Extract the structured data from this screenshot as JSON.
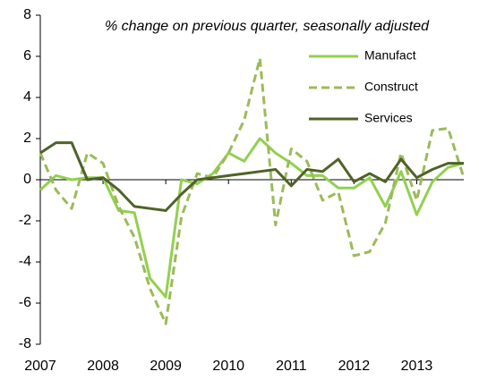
{
  "chart_data": {
    "type": "line",
    "title": "% change on previous quarter, seasonally adjusted",
    "x": [
      2007,
      2007.25,
      2007.5,
      2007.75,
      2008,
      2008.25,
      2008.5,
      2008.75,
      2009,
      2009.25,
      2009.5,
      2009.75,
      2010,
      2010.25,
      2010.5,
      2010.75,
      2011,
      2011.25,
      2011.5,
      2011.75,
      2012,
      2012.25,
      2012.5,
      2012.75,
      2013,
      2013.25,
      2013.5,
      2013.75
    ],
    "series": [
      {
        "name": "Manufact",
        "color": "#92d050",
        "dash": false,
        "values": [
          -0.5,
          0.2,
          0.0,
          0.1,
          0.1,
          -1.5,
          -1.6,
          -4.8,
          -5.7,
          0.0,
          -0.2,
          0.3,
          1.3,
          0.9,
          2.0,
          1.3,
          0.8,
          0.2,
          0.2,
          -0.4,
          -0.4,
          0.1,
          -1.3,
          0.4,
          -1.7,
          -0.1,
          0.6,
          0.8
        ]
      },
      {
        "name": "Construct",
        "color": "#9bbb59",
        "dash": true,
        "values": [
          1.3,
          -0.5,
          -1.4,
          1.3,
          0.8,
          -1.3,
          -2.8,
          -5.3,
          -7.0,
          -1.8,
          0.3,
          0.1,
          1.3,
          2.9,
          5.9,
          -2.2,
          1.5,
          0.9,
          -1.0,
          -0.6,
          -3.7,
          -3.5,
          -2.1,
          1.3,
          -1.0,
          2.4,
          2.5,
          0.1
        ]
      },
      {
        "name": "Services",
        "color": "#4f6228",
        "dash": false,
        "values": [
          1.3,
          1.8,
          1.8,
          0.0,
          0.1,
          -0.5,
          -1.3,
          -1.4,
          -1.5,
          -0.7,
          0.0,
          0.1,
          0.2,
          0.3,
          0.4,
          0.5,
          -0.3,
          0.5,
          0.4,
          1.0,
          -0.1,
          0.3,
          -0.1,
          1.0,
          0.1,
          0.5,
          0.8,
          0.8
        ]
      }
    ],
    "xlim": [
      2007,
      2013.75
    ],
    "xticks": [
      2007,
      2008,
      2009,
      2010,
      2011,
      2012,
      2013
    ],
    "ylim": [
      -8,
      8
    ],
    "yticks": [
      -8,
      -6,
      -4,
      -2,
      0,
      2,
      4,
      6,
      8
    ],
    "grid": false,
    "legend": "upper right"
  }
}
